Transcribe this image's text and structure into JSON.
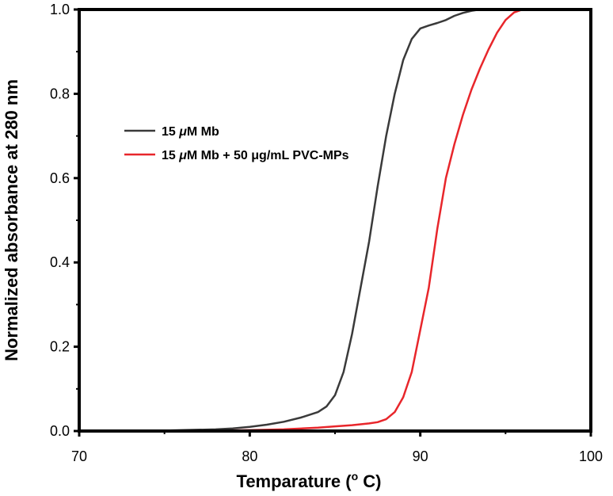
{
  "chart_data": {
    "type": "line",
    "title": "",
    "xlabel": "Temparature (° C)",
    "xlabel_parts": {
      "main": "Temparature (",
      "sup": "o",
      "tail": " C)"
    },
    "ylabel": "Normalized absorbance at 280 nm",
    "xlim": [
      70,
      100
    ],
    "ylim": [
      0,
      1.0
    ],
    "x_ticks": [
      70,
      80,
      90,
      100
    ],
    "x_tick_labels": [
      "70",
      "80",
      "90",
      "100"
    ],
    "y_ticks": [
      0,
      0.2,
      0.4,
      0.6,
      0.8,
      1.0
    ],
    "y_tick_labels": [
      "0.0",
      "0.2",
      "0.4",
      "0.6",
      "0.8",
      "1.0"
    ],
    "grid": false,
    "legend_position": "upper-left",
    "series": [
      {
        "name": "15 μM Mb",
        "label_parts": [
          "15 ",
          "μ",
          "M Mb"
        ],
        "color": "#3a3a3a",
        "x": [
          70,
          74,
          76,
          78,
          79,
          80,
          81,
          82,
          83,
          84,
          84.5,
          85,
          85.5,
          86,
          86.5,
          87,
          87.5,
          88,
          88.5,
          89,
          89.5,
          90,
          90.5,
          91,
          91.5,
          92,
          92.5,
          93,
          93.5,
          94,
          94.5,
          95,
          96
        ],
        "y": [
          0,
          0,
          0.002,
          0.004,
          0.006,
          0.01,
          0.015,
          0.022,
          0.032,
          0.045,
          0.058,
          0.085,
          0.14,
          0.23,
          0.34,
          0.45,
          0.58,
          0.7,
          0.8,
          0.88,
          0.93,
          0.955,
          0.962,
          0.968,
          0.975,
          0.985,
          0.992,
          0.997,
          1.0,
          1.0,
          1.0,
          1.0,
          1.0
        ]
      },
      {
        "name": "15 μM Mb + 50 μg/mL PVC-MPs",
        "label_parts": [
          "15 ",
          "μ",
          "M Mb + 50 μg/mL PVC-MPs"
        ],
        "color": "#e8262b",
        "x": [
          70,
          76,
          78,
          80,
          82,
          84,
          85,
          86,
          86.5,
          87,
          87.5,
          88,
          88.5,
          89,
          89.5,
          90,
          90.5,
          91,
          91.5,
          92,
          92.5,
          93,
          93.5,
          94,
          94.5,
          95,
          95.5,
          96
        ],
        "y": [
          0,
          0,
          0.001,
          0.002,
          0.004,
          0.008,
          0.011,
          0.014,
          0.016,
          0.018,
          0.021,
          0.028,
          0.045,
          0.08,
          0.14,
          0.24,
          0.34,
          0.48,
          0.6,
          0.68,
          0.75,
          0.81,
          0.86,
          0.905,
          0.945,
          0.975,
          0.993,
          1.0
        ]
      }
    ]
  }
}
